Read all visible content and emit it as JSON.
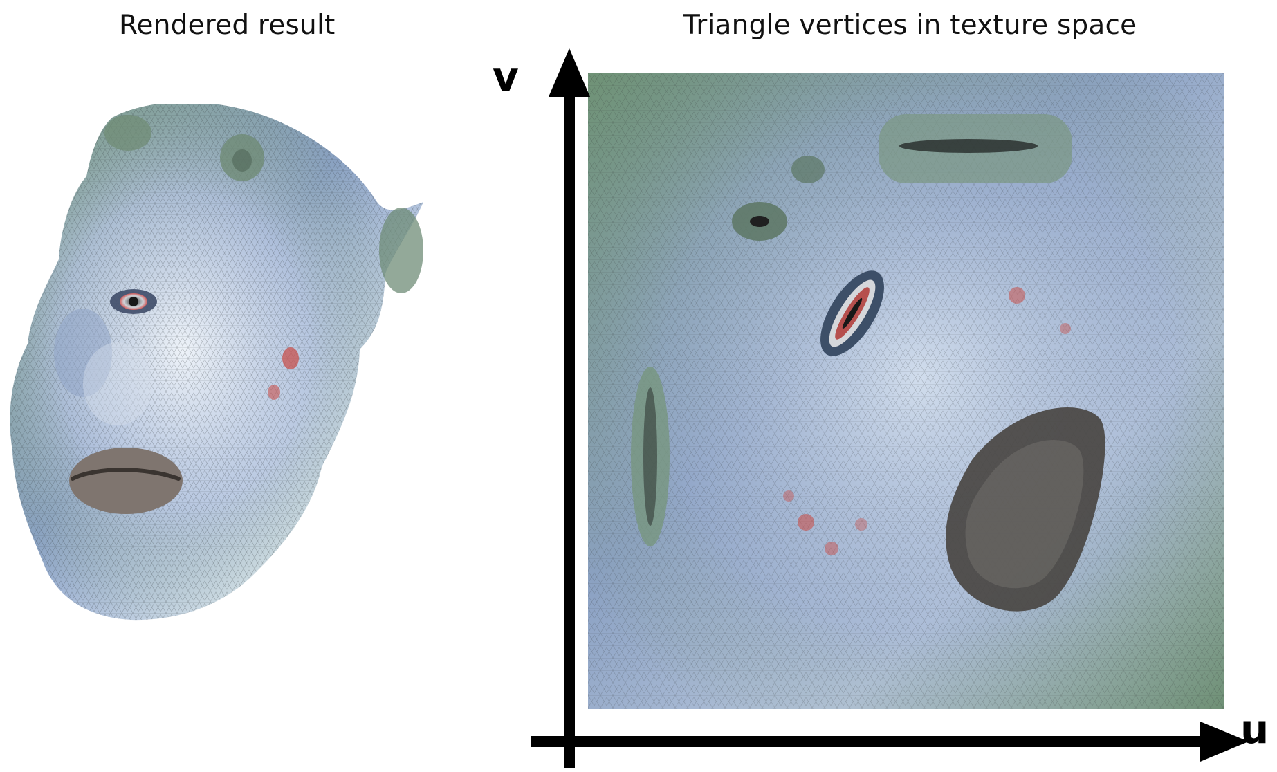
{
  "titles": {
    "left": "Rendered result",
    "right": "Triangle vertices in texture space"
  },
  "axes": {
    "horizontal_label": "u",
    "vertical_label": "v"
  },
  "figures": {
    "left": "rendered-head-mesh",
    "right": "texture-space-mesh"
  },
  "colors": {
    "mesh_green": "#7f9f86",
    "mesh_blue": "#8ea3c6",
    "mesh_dark": "#2c2f35",
    "accent_red": "#c8524d",
    "axis_black": "#000000"
  }
}
